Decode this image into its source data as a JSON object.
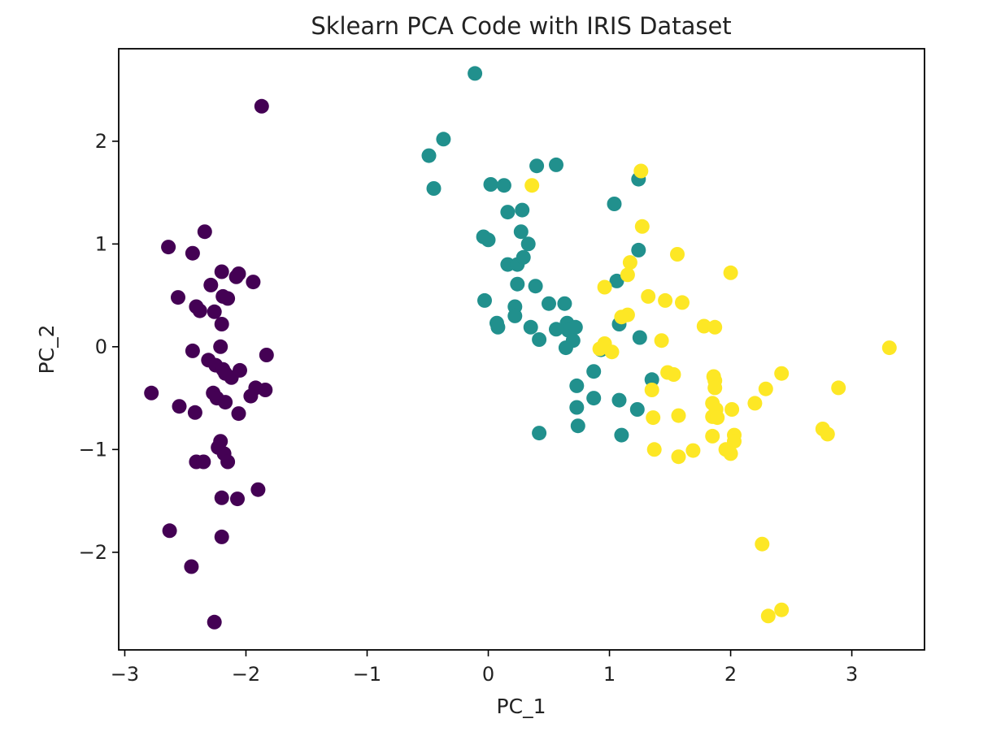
{
  "chart_data": {
    "type": "scatter",
    "title": "Sklearn PCA Code with IRIS Dataset",
    "xlabel": "PC_1",
    "ylabel": "PC_2",
    "xlim": [
      -3.05,
      3.6
    ],
    "ylim": [
      -2.95,
      2.9
    ],
    "xticks": [
      -3,
      -2,
      -1,
      0,
      1,
      2,
      3
    ],
    "yticks": [
      -2,
      -1,
      0,
      1,
      2
    ],
    "xtick_labels": [
      "−3",
      "−2",
      "−1",
      "0",
      "1",
      "2",
      "3"
    ],
    "ytick_labels": [
      "−2",
      "−1",
      "0",
      "1",
      "2"
    ],
    "grid": false,
    "series": [
      {
        "color": "#440154",
        "points": [
          [
            -1.87,
            2.34
          ],
          [
            -2.34,
            1.12
          ],
          [
            -2.64,
            0.97
          ],
          [
            -2.44,
            0.91
          ],
          [
            -2.2,
            0.73
          ],
          [
            -2.06,
            0.71
          ],
          [
            -2.08,
            0.68
          ],
          [
            -1.94,
            0.63
          ],
          [
            -2.29,
            0.6
          ],
          [
            -2.56,
            0.48
          ],
          [
            -2.19,
            0.49
          ],
          [
            -2.15,
            0.47
          ],
          [
            -2.41,
            0.39
          ],
          [
            -2.38,
            0.35
          ],
          [
            -2.26,
            0.34
          ],
          [
            -2.2,
            0.22
          ],
          [
            -2.44,
            -0.04
          ],
          [
            -2.31,
            -0.13
          ],
          [
            -2.21,
            0.0
          ],
          [
            -2.25,
            -0.18
          ],
          [
            -2.19,
            -0.22
          ],
          [
            -2.12,
            -0.3
          ],
          [
            -2.05,
            -0.23
          ],
          [
            -1.83,
            -0.08
          ],
          [
            -2.17,
            -0.26
          ],
          [
            -1.92,
            -0.4
          ],
          [
            -1.84,
            -0.42
          ],
          [
            -1.96,
            -0.48
          ],
          [
            -2.78,
            -0.45
          ],
          [
            -2.27,
            -0.45
          ],
          [
            -2.24,
            -0.5
          ],
          [
            -2.17,
            -0.54
          ],
          [
            -2.55,
            -0.58
          ],
          [
            -2.42,
            -0.64
          ],
          [
            -2.06,
            -0.65
          ],
          [
            -2.21,
            -0.92
          ],
          [
            -2.23,
            -0.98
          ],
          [
            -2.18,
            -1.04
          ],
          [
            -2.15,
            -1.12
          ],
          [
            -2.41,
            -1.12
          ],
          [
            -2.35,
            -1.12
          ],
          [
            -2.2,
            -1.47
          ],
          [
            -2.07,
            -1.48
          ],
          [
            -1.9,
            -1.39
          ],
          [
            -2.63,
            -1.79
          ],
          [
            -2.2,
            -1.85
          ],
          [
            -2.45,
            -2.14
          ],
          [
            -2.26,
            -2.68
          ]
        ]
      },
      {
        "color": "#21908d",
        "points": [
          [
            -0.11,
            2.66
          ],
          [
            -0.37,
            2.02
          ],
          [
            -0.49,
            1.86
          ],
          [
            -0.45,
            1.54
          ],
          [
            0.4,
            1.76
          ],
          [
            0.56,
            1.77
          ],
          [
            0.02,
            1.58
          ],
          [
            0.13,
            1.57
          ],
          [
            1.24,
            1.63
          ],
          [
            1.04,
            1.39
          ],
          [
            0.16,
            1.31
          ],
          [
            0.28,
            1.33
          ],
          [
            -0.04,
            1.07
          ],
          [
            0.0,
            1.04
          ],
          [
            0.27,
            1.12
          ],
          [
            0.33,
            1.0
          ],
          [
            0.16,
            0.8
          ],
          [
            0.24,
            0.8
          ],
          [
            0.29,
            0.87
          ],
          [
            1.24,
            0.94
          ],
          [
            1.06,
            0.64
          ],
          [
            0.24,
            0.61
          ],
          [
            0.39,
            0.59
          ],
          [
            -0.03,
            0.45
          ],
          [
            0.22,
            0.39
          ],
          [
            0.22,
            0.3
          ],
          [
            0.5,
            0.42
          ],
          [
            0.63,
            0.42
          ],
          [
            0.65,
            0.23
          ],
          [
            0.66,
            0.16
          ],
          [
            0.72,
            0.19
          ],
          [
            0.56,
            0.17
          ],
          [
            0.07,
            0.23
          ],
          [
            0.08,
            0.19
          ],
          [
            0.35,
            0.19
          ],
          [
            0.7,
            0.06
          ],
          [
            0.42,
            0.07
          ],
          [
            0.64,
            -0.01
          ],
          [
            1.08,
            0.22
          ],
          [
            1.25,
            0.09
          ],
          [
            0.93,
            -0.03
          ],
          [
            0.87,
            -0.24
          ],
          [
            0.73,
            -0.38
          ],
          [
            1.35,
            -0.32
          ],
          [
            0.73,
            -0.59
          ],
          [
            0.87,
            -0.5
          ],
          [
            1.08,
            -0.52
          ],
          [
            1.23,
            -0.61
          ],
          [
            0.74,
            -0.77
          ],
          [
            0.42,
            -0.84
          ],
          [
            1.1,
            -0.86
          ]
        ]
      },
      {
        "color": "#fde725",
        "points": [
          [
            1.26,
            1.71
          ],
          [
            0.36,
            1.57
          ],
          [
            1.27,
            1.17
          ],
          [
            1.56,
            0.9
          ],
          [
            2.0,
            0.72
          ],
          [
            1.17,
            0.82
          ],
          [
            1.15,
            0.7
          ],
          [
            0.96,
            0.58
          ],
          [
            1.32,
            0.49
          ],
          [
            1.46,
            0.45
          ],
          [
            1.6,
            0.43
          ],
          [
            1.15,
            0.31
          ],
          [
            1.1,
            0.29
          ],
          [
            1.78,
            0.2
          ],
          [
            1.87,
            0.19
          ],
          [
            1.43,
            0.06
          ],
          [
            0.96,
            0.03
          ],
          [
            0.92,
            -0.02
          ],
          [
            1.02,
            -0.05
          ],
          [
            3.31,
            -0.01
          ],
          [
            1.48,
            -0.25
          ],
          [
            1.53,
            -0.27
          ],
          [
            1.86,
            -0.29
          ],
          [
            1.87,
            -0.33
          ],
          [
            2.42,
            -0.26
          ],
          [
            1.87,
            -0.4
          ],
          [
            2.29,
            -0.41
          ],
          [
            2.89,
            -0.4
          ],
          [
            1.35,
            -0.42
          ],
          [
            2.2,
            -0.55
          ],
          [
            1.85,
            -0.55
          ],
          [
            1.88,
            -0.61
          ],
          [
            2.01,
            -0.61
          ],
          [
            1.85,
            -0.68
          ],
          [
            1.89,
            -0.69
          ],
          [
            1.36,
            -0.69
          ],
          [
            1.57,
            -0.67
          ],
          [
            2.76,
            -0.8
          ],
          [
            2.8,
            -0.85
          ],
          [
            2.03,
            -0.86
          ],
          [
            2.03,
            -0.92
          ],
          [
            1.85,
            -0.87
          ],
          [
            1.37,
            -1.0
          ],
          [
            1.69,
            -1.01
          ],
          [
            1.96,
            -1.0
          ],
          [
            2.0,
            -1.04
          ],
          [
            1.57,
            -1.07
          ],
          [
            2.26,
            -1.92
          ],
          [
            2.42,
            -2.56
          ],
          [
            2.31,
            -2.62
          ]
        ]
      }
    ]
  }
}
